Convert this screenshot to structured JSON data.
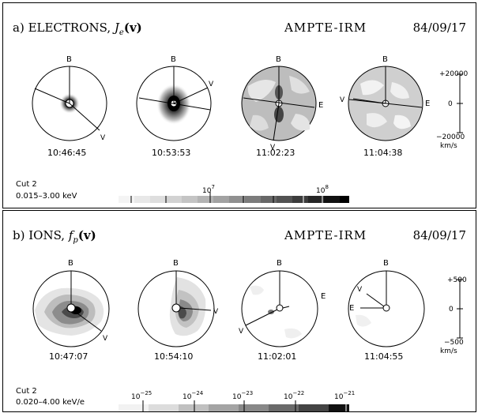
{
  "panels": [
    {
      "id": "electrons",
      "title_prefix": "a) ELECTRONS, ",
      "title_symbol": "J",
      "title_sub": "e",
      "title_arg": "(v)",
      "mission": "AMPTE-IRM",
      "date": "84/09/17",
      "cut_label": "Cut 2",
      "energy_range": "0.015–3.00 keV",
      "velocity_scale": {
        "top": "+20000",
        "mid": "0",
        "bottom": "−20000",
        "unit": "km/s"
      },
      "colorbar_labels": [
        {
          "base": "10",
          "exp": "7"
        },
        {
          "base": "10",
          "exp": "8"
        }
      ],
      "plots": [
        {
          "time": "10:46:45",
          "labels": [
            "B",
            "V"
          ]
        },
        {
          "time": "10:53:53",
          "labels": [
            "B",
            "V"
          ]
        },
        {
          "time": "11:02:23",
          "labels": [
            "B",
            "E",
            "V"
          ]
        },
        {
          "time": "11:04:38",
          "labels": [
            "B",
            "E",
            "V"
          ]
        }
      ]
    },
    {
      "id": "ions",
      "title_prefix": "b) IONS, ",
      "title_symbol": "f",
      "title_sub": "p",
      "title_arg": "(v)",
      "mission": "AMPTE-IRM",
      "date": "84/09/17",
      "cut_label": "Cut 2",
      "energy_range": "0.020–4.00 keV/e",
      "velocity_scale": {
        "top": "+500",
        "mid": "0",
        "bottom": "−500",
        "unit": "km/s"
      },
      "colorbar_labels": [
        {
          "base": "10",
          "exp": "−25"
        },
        {
          "base": "10",
          "exp": "−24"
        },
        {
          "base": "10",
          "exp": "−23"
        },
        {
          "base": "10",
          "exp": "−22"
        },
        {
          "base": "10",
          "exp": "−21"
        }
      ],
      "plots": [
        {
          "time": "10:47:07",
          "labels": [
            "B",
            "V"
          ]
        },
        {
          "time": "10:54:10",
          "labels": [
            "B",
            "V"
          ]
        },
        {
          "time": "11:02:01",
          "labels": [
            "B",
            "E",
            "V"
          ]
        },
        {
          "time": "11:04:55",
          "labels": [
            "B",
            "E",
            "V"
          ]
        }
      ]
    }
  ]
}
